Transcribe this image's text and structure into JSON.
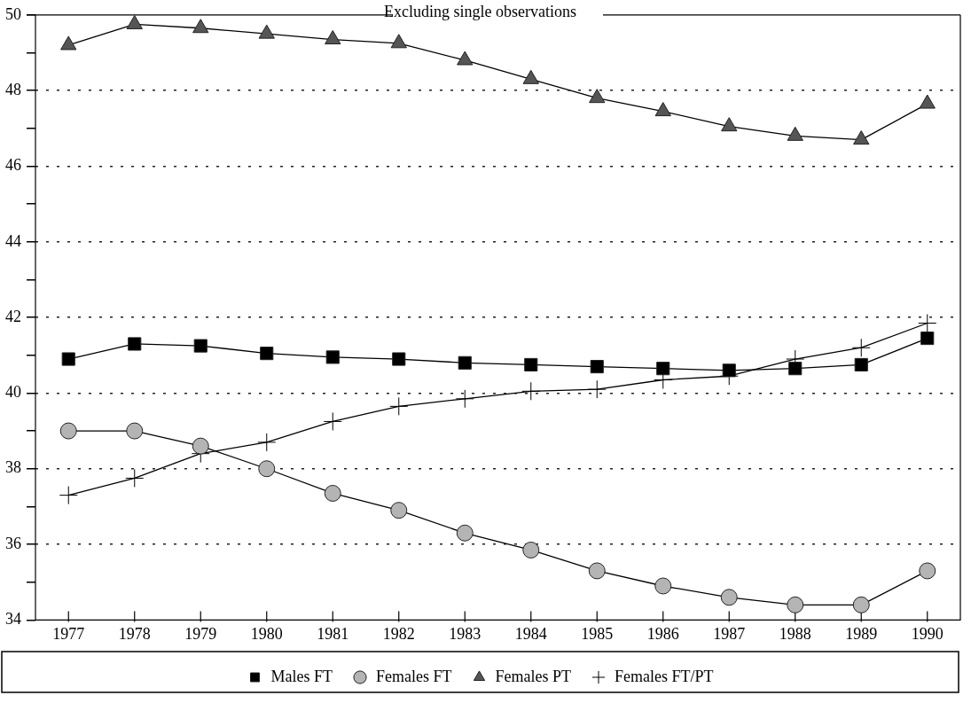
{
  "chart_data": {
    "type": "line",
    "title": "Excluding single observations",
    "categories": [
      "1977",
      "1978",
      "1979",
      "1980",
      "1981",
      "1982",
      "1983",
      "1984",
      "1985",
      "1986",
      "1987",
      "1988",
      "1989",
      "1990"
    ],
    "series": [
      {
        "name": "Males FT",
        "color": "#000000",
        "marker": "square",
        "values": [
          40.9,
          41.3,
          41.25,
          41.05,
          40.95,
          40.9,
          40.8,
          40.75,
          40.7,
          40.65,
          40.6,
          40.65,
          40.75,
          41.45
        ]
      },
      {
        "name": "Females FT",
        "color": "#b4b4b4",
        "marker": "circle",
        "values": [
          39.0,
          39.0,
          38.6,
          38.0,
          37.35,
          36.9,
          36.3,
          35.85,
          35.3,
          34.9,
          34.6,
          34.4,
          34.4,
          35.3
        ]
      },
      {
        "name": "Females PT",
        "color": "#555555",
        "marker": "triangle",
        "values": [
          49.2,
          49.75,
          49.65,
          49.5,
          49.35,
          49.25,
          48.8,
          48.3,
          47.8,
          47.45,
          47.05,
          46.8,
          46.7,
          47.65
        ]
      },
      {
        "name": "Females FT/PT",
        "color": "#000000",
        "marker": "cross",
        "values": [
          37.3,
          37.75,
          38.4,
          38.7,
          39.25,
          39.65,
          39.85,
          40.05,
          40.1,
          40.35,
          40.45,
          40.9,
          41.2,
          41.85
        ]
      }
    ],
    "ylim": [
      34,
      50
    ],
    "yticks": [
      34,
      {
        "value": 35,
        "label": null
      },
      36,
      {
        "value": 37,
        "label": null
      },
      38,
      {
        "value": 39,
        "label": null
      },
      40,
      {
        "value": 41,
        "label": null
      },
      42,
      {
        "value": 43,
        "label": null
      },
      44,
      {
        "value": 45,
        "label": null
      },
      46,
      {
        "value": 47,
        "label": null
      },
      48,
      {
        "value": 49,
        "label": null
      },
      50
    ],
    "grid": "y",
    "legend": "bottom",
    "line_style": "solid"
  }
}
